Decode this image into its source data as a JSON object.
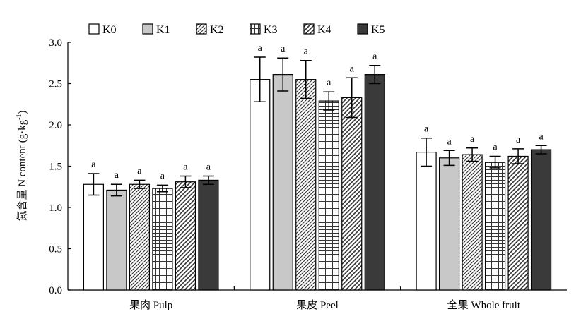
{
  "chart_data": {
    "type": "bar",
    "title": "",
    "xlabel": "",
    "ylabel": "氮含量 N content (g·kg",
    "ylabel_superscript": "-1",
    "ylabel_suffix": ")",
    "ylim": [
      0,
      3.0
    ],
    "yticks": [
      "0.0",
      "0.5",
      "1.0",
      "1.5",
      "2.0",
      "2.5",
      "3.0"
    ],
    "categories": [
      "果肉 Pulp",
      "果皮 Peel",
      "全果 Whole fruit"
    ],
    "legend_position": "top",
    "series": [
      {
        "name": "K0",
        "pattern": "white",
        "values": [
          1.28,
          2.55,
          1.67
        ],
        "errors": [
          0.13,
          0.27,
          0.17
        ],
        "labels": [
          "a",
          "a",
          "a"
        ]
      },
      {
        "name": "K1",
        "pattern": "lightgray",
        "values": [
          1.21,
          2.61,
          1.6
        ],
        "errors": [
          0.07,
          0.2,
          0.09
        ],
        "labels": [
          "a",
          "a",
          "a"
        ]
      },
      {
        "name": "K2",
        "pattern": "diagonal",
        "values": [
          1.28,
          2.55,
          1.64
        ],
        "errors": [
          0.05,
          0.23,
          0.08
        ],
        "labels": [
          "a",
          "a",
          "a"
        ]
      },
      {
        "name": "K3",
        "pattern": "grid",
        "values": [
          1.23,
          2.29,
          1.55
        ],
        "errors": [
          0.04,
          0.11,
          0.07
        ],
        "labels": [
          "a",
          "a",
          "a"
        ]
      },
      {
        "name": "K4",
        "pattern": "diagonal2",
        "values": [
          1.31,
          2.33,
          1.62
        ],
        "errors": [
          0.07,
          0.24,
          0.09
        ],
        "labels": [
          "a",
          "a",
          "a"
        ]
      },
      {
        "name": "K5",
        "pattern": "dark",
        "values": [
          1.33,
          2.61,
          1.7
        ],
        "errors": [
          0.05,
          0.11,
          0.05
        ],
        "labels": [
          "a",
          "a",
          "a"
        ]
      }
    ],
    "colors": {
      "dark": "#3a3a3a",
      "lightgray": "#c8c8c8",
      "white": "#ffffff",
      "hatch": "#333333"
    }
  }
}
